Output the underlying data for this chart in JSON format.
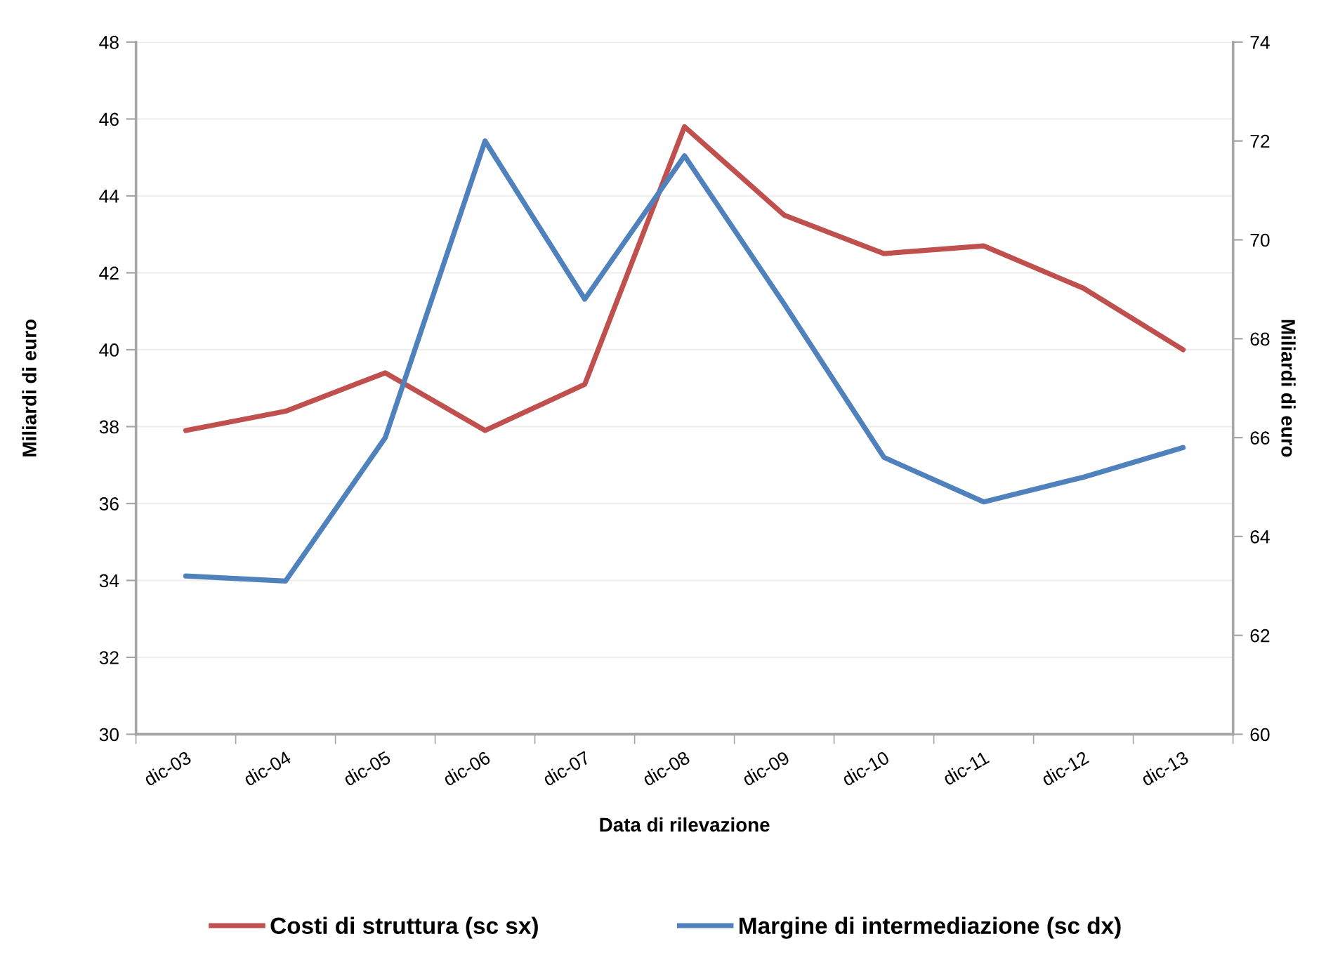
{
  "chart_data": {
    "type": "line",
    "categories": [
      "dic-03",
      "dic-04",
      "dic-05",
      "dic-06",
      "dic-07",
      "dic-08",
      "dic-09",
      "dic-10",
      "dic-11",
      "dic-12",
      "dic-13"
    ],
    "series": [
      {
        "name": "Costi di struttura (sc sx)",
        "color": "#c0504d",
        "values": [
          37.9,
          38.4,
          39.4,
          37.9,
          39.1,
          45.8,
          43.5,
          42.5,
          42.7,
          41.6,
          40.0
        ]
      },
      {
        "name": "Margine di intermediazione (sc dx)",
        "color": "#4f81bd",
        "axis": "y2",
        "values": [
          63.2,
          63.1,
          66.0,
          72.0,
          68.8,
          71.7,
          68.7,
          65.6,
          64.7,
          65.2,
          65.8
        ]
      }
    ],
    "xlabel": "Data di rilevazione",
    "ylabel": "Miliardi di euro",
    "y2label": "Miliardi di euro",
    "ylim": [
      30,
      48
    ],
    "yticks": [
      30,
      32,
      34,
      36,
      38,
      40,
      42,
      44,
      46,
      48
    ],
    "y2lim": [
      60,
      74
    ],
    "y2ticks": [
      60,
      62,
      64,
      66,
      68,
      70,
      72,
      74
    ],
    "grid": "y",
    "legend": "bottom"
  }
}
